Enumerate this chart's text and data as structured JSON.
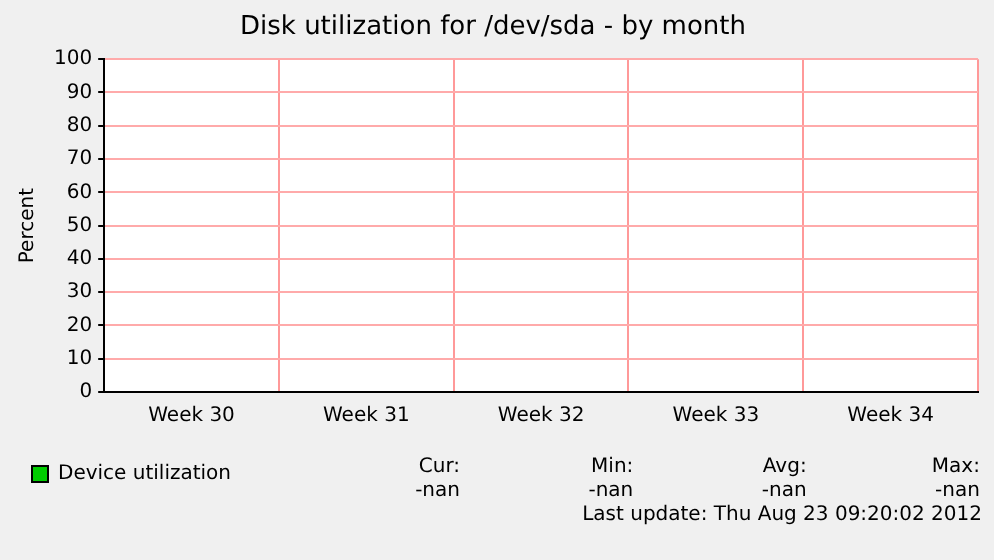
{
  "chart_data": {
    "type": "line",
    "title": "Disk utilization for /dev/sda - by month",
    "ylabel": "Percent",
    "categories": [
      "Week 30",
      "Week 31",
      "Week 32",
      "Week 33",
      "Week 34"
    ],
    "series": [
      {
        "name": "Device utilization",
        "color": "#00cc00",
        "values": [
          null,
          null,
          null,
          null,
          null
        ]
      }
    ],
    "ylim": [
      0,
      100
    ],
    "yticks": [
      0,
      10,
      20,
      30,
      40,
      50,
      60,
      70,
      80,
      90,
      100
    ],
    "grid": true,
    "legend": "bottom left",
    "annotations": [
      "Cur:\n-nan",
      "Min:\n-nan",
      "Avg:\n-nan",
      "Max:\n-nan",
      "Last update: Thu Aug 23 09:20:02 2012"
    ]
  }
}
